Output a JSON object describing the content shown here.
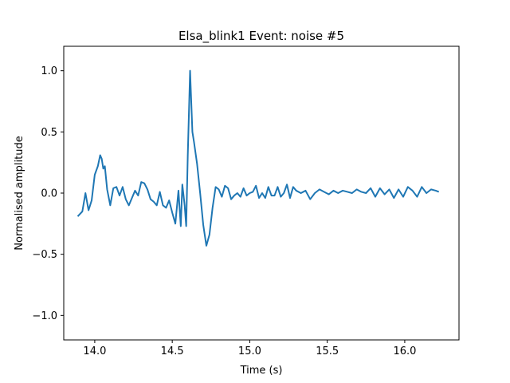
{
  "chart_data": {
    "type": "line",
    "title": "Elsa_blink1 Event: noise #5",
    "xlabel": "Time (s)",
    "ylabel": "Normalised amplitude",
    "xlim": [
      13.8,
      16.35
    ],
    "ylim": [
      -1.2,
      1.2
    ],
    "xticks": [
      14.0,
      14.5,
      15.0,
      15.5,
      16.0
    ],
    "xtick_labels": [
      "14.0",
      "14.5",
      "15.0",
      "15.5",
      "16.0"
    ],
    "yticks": [
      -1.0,
      -0.5,
      0.0,
      0.5,
      1.0
    ],
    "ytick_labels": [
      "−1.0",
      "−0.5",
      "0.0",
      "0.5",
      "1.0"
    ],
    "grid": false,
    "series": [
      {
        "color": "#1f77b4",
        "x": [
          13.89,
          13.92,
          13.94,
          13.96,
          13.98,
          14.0,
          14.02,
          14.035,
          14.045,
          14.055,
          14.065,
          14.08,
          14.1,
          14.12,
          14.14,
          14.16,
          14.18,
          14.2,
          14.22,
          14.24,
          14.26,
          14.28,
          14.3,
          14.32,
          14.34,
          14.36,
          14.38,
          14.4,
          14.42,
          14.44,
          14.46,
          14.48,
          14.5,
          14.52,
          14.54,
          14.555,
          14.565,
          14.58,
          14.59,
          14.6,
          14.615,
          14.63,
          14.64,
          14.66,
          14.68,
          14.7,
          14.72,
          14.74,
          14.76,
          14.78,
          14.8,
          14.82,
          14.84,
          14.86,
          14.88,
          14.9,
          14.92,
          14.94,
          14.96,
          14.98,
          15.0,
          15.02,
          15.04,
          15.06,
          15.08,
          15.1,
          15.12,
          15.14,
          15.16,
          15.18,
          15.2,
          15.22,
          15.24,
          15.26,
          15.28,
          15.3,
          15.33,
          15.36,
          15.39,
          15.42,
          15.45,
          15.48,
          15.51,
          15.54,
          15.57,
          15.6,
          15.63,
          15.66,
          15.69,
          15.72,
          15.75,
          15.78,
          15.81,
          15.84,
          15.87,
          15.9,
          15.93,
          15.96,
          15.99,
          16.02,
          16.05,
          16.08,
          16.11,
          16.14,
          16.17,
          16.2,
          16.22
        ],
        "y": [
          -0.19,
          -0.15,
          -0.0,
          -0.14,
          -0.06,
          0.15,
          0.22,
          0.31,
          0.28,
          0.2,
          0.22,
          0.03,
          -0.1,
          0.04,
          0.05,
          -0.02,
          0.05,
          -0.05,
          -0.1,
          -0.04,
          0.02,
          -0.02,
          0.09,
          0.08,
          0.03,
          -0.05,
          -0.07,
          -0.1,
          0.01,
          -0.1,
          -0.12,
          -0.06,
          -0.16,
          -0.25,
          0.02,
          -0.27,
          0.07,
          -0.1,
          -0.27,
          0.3,
          1.0,
          0.5,
          0.42,
          0.24,
          0.0,
          -0.26,
          -0.43,
          -0.34,
          -0.12,
          0.05,
          0.03,
          -0.03,
          0.06,
          0.04,
          -0.05,
          -0.02,
          0.0,
          -0.03,
          0.04,
          -0.02,
          -0.0,
          0.01,
          0.06,
          -0.04,
          0.0,
          -0.04,
          0.05,
          -0.02,
          -0.02,
          0.05,
          -0.03,
          -0.0,
          0.07,
          -0.04,
          0.05,
          0.02,
          -0.0,
          0.02,
          -0.05,
          -0.0,
          0.03,
          0.01,
          -0.01,
          0.02,
          -0.0,
          0.02,
          0.01,
          -0.0,
          0.03,
          0.01,
          -0.0,
          0.04,
          -0.03,
          0.04,
          -0.01,
          0.03,
          -0.04,
          0.03,
          -0.03,
          0.05,
          0.02,
          -0.03,
          0.05,
          0.0,
          0.03,
          0.02,
          0.01
        ]
      }
    ]
  }
}
